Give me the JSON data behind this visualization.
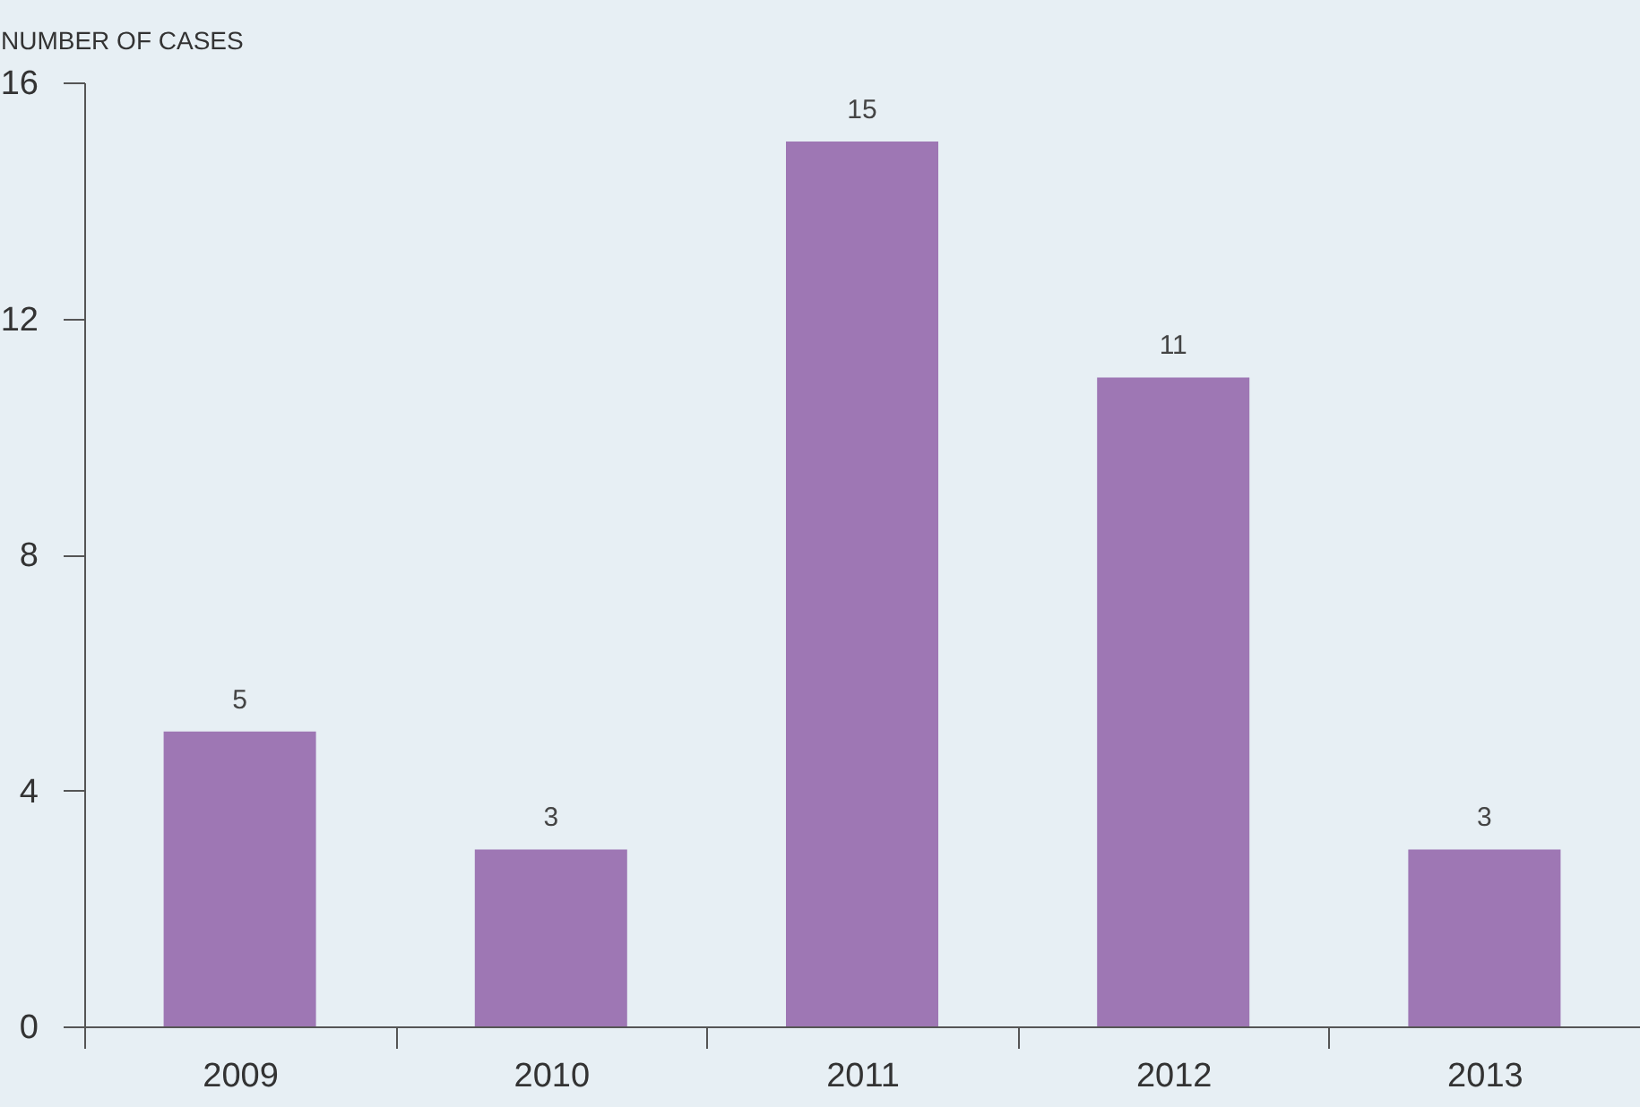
{
  "chart_data": {
    "type": "bar",
    "ylabel": "NUMBER OF CASES",
    "categories": [
      "2009",
      "2010",
      "2011",
      "2012",
      "2013"
    ],
    "values": [
      5,
      3,
      15,
      11,
      3
    ],
    "color": "#9e77b4",
    "ylim": [
      0,
      16
    ],
    "yticks": [
      0,
      4,
      8,
      12,
      16
    ],
    "grid": false,
    "data_labels": true
  }
}
